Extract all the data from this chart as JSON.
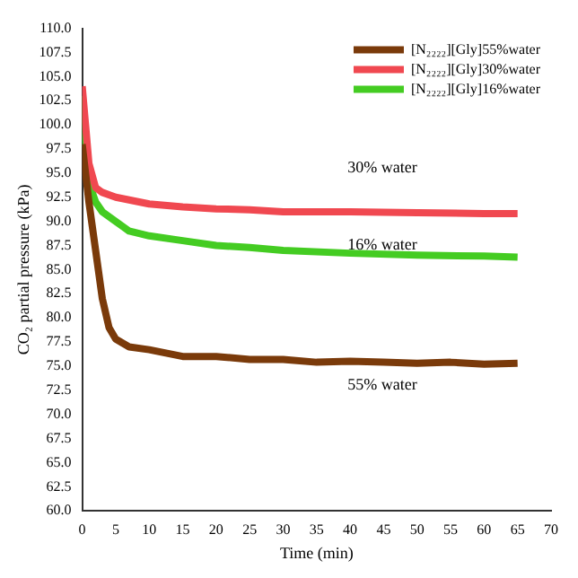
{
  "chart_data": {
    "type": "line",
    "xlabel": "Time (min)",
    "ylabel": "CO₂ partial pressure (kPa)",
    "xlim": [
      0,
      70
    ],
    "xticks": [
      0,
      5,
      10,
      15,
      20,
      25,
      30,
      35,
      40,
      45,
      50,
      55,
      60,
      65,
      70
    ],
    "ylim": [
      60,
      110
    ],
    "yticks": [
      {
        "value": 60,
        "label": "60.0"
      },
      {
        "value": 62.5,
        "label": "62.5"
      },
      {
        "value": 65,
        "label": "65.0"
      },
      {
        "value": 67.5,
        "label": "67.5"
      },
      {
        "value": 70,
        "label": "70.0"
      },
      {
        "value": 72.5,
        "label": "72.5"
      },
      {
        "value": 75,
        "label": "75.0"
      },
      {
        "value": 77.5,
        "label": "77.5"
      },
      {
        "value": 80,
        "label": "80.0"
      },
      {
        "value": 82.5,
        "label": "82.5"
      },
      {
        "value": 85,
        "label": "85.0"
      },
      {
        "value": 87.5,
        "label": "87.5"
      },
      {
        "value": 90,
        "label": "90.0"
      },
      {
        "value": 92.5,
        "label": "92.5"
      },
      {
        "value": 95,
        "label": "95.0"
      },
      {
        "value": 97.5,
        "label": "97.5"
      },
      {
        "value": 100,
        "label": "100.0"
      },
      {
        "value": 102.5,
        "label": "102.5"
      },
      {
        "value": 105,
        "label": "105.0"
      },
      {
        "value": 107.5,
        "label": "107.5"
      },
      {
        "value": 110,
        "label": "110.0"
      }
    ],
    "grid": false,
    "legend": "top right",
    "marker": "none",
    "line_style": "solid",
    "series": [
      {
        "name": "[N₂₂₂₂][Gly]55%water",
        "color": "#7a3a0a",
        "x": [
          0,
          0.5,
          1,
          2,
          3,
          4,
          5,
          7,
          10,
          15,
          20,
          25,
          30,
          35,
          40,
          45,
          50,
          55,
          60,
          65
        ],
        "values": [
          98,
          95,
          92,
          87,
          82,
          79,
          77.8,
          77,
          76.7,
          76,
          76,
          75.7,
          75.7,
          75.4,
          75.5,
          75.4,
          75.3,
          75.4,
          75.2,
          75.3
        ]
      },
      {
        "name": "[N₂₂₂₂][Gly]30%water",
        "color": "#f04850",
        "x": [
          0,
          0.5,
          1,
          2,
          3,
          5,
          10,
          15,
          20,
          25,
          30,
          40,
          50,
          60,
          65
        ],
        "values": [
          104,
          100,
          96,
          93.5,
          93,
          92.5,
          91.8,
          91.5,
          91.3,
          91.2,
          91,
          91,
          90.9,
          90.8,
          90.8
        ]
      },
      {
        "name": "[N₂₂₂₂][Gly]16%water",
        "color": "#44cc22",
        "x": [
          0,
          0.5,
          1,
          2,
          3,
          5,
          7,
          10,
          15,
          20,
          25,
          30,
          40,
          50,
          60,
          65
        ],
        "values": [
          103,
          98,
          94,
          92,
          91,
          90,
          89,
          88.5,
          88,
          87.5,
          87.3,
          87,
          86.7,
          86.5,
          86.4,
          86.3
        ]
      }
    ],
    "annotations": [
      "30% water",
      "16% water",
      "55% water"
    ]
  }
}
